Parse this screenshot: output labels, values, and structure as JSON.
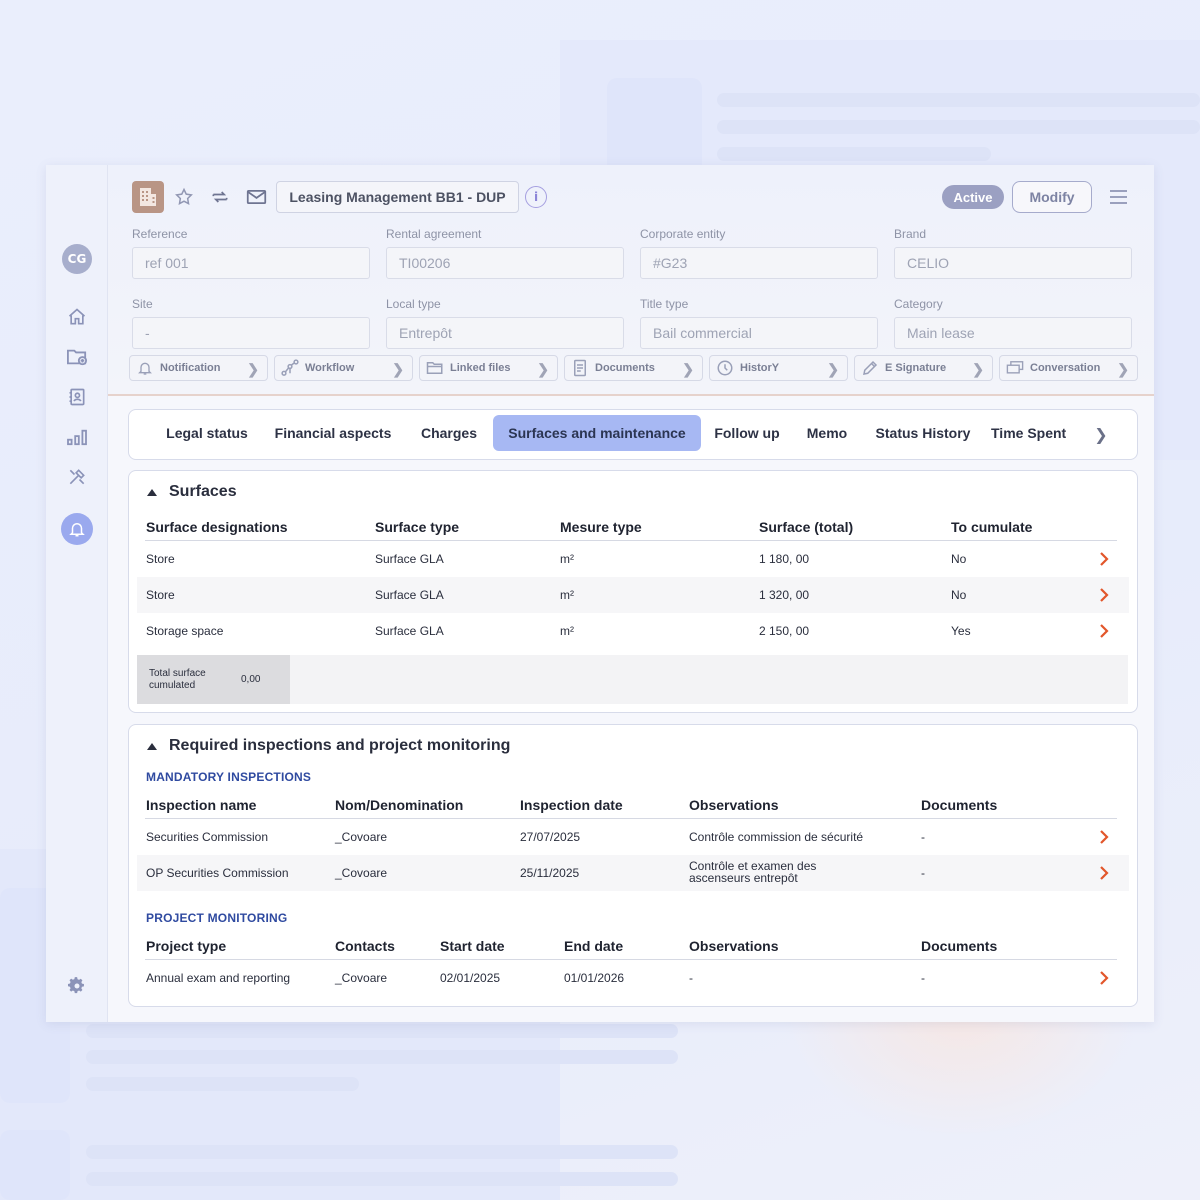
{
  "header": {
    "title": "Leasing Management BB1 - DUP",
    "status": "Active",
    "modify_label": "Modify",
    "user_initials": "CG"
  },
  "fields": [
    {
      "label": "Reference",
      "value": "ref 001"
    },
    {
      "label": "Rental agreement",
      "value": "TI00206"
    },
    {
      "label": "Corporate entity",
      "value": "#G23"
    },
    {
      "label": "Brand",
      "value": "CELIO"
    },
    {
      "label": "Site",
      "value": "-"
    },
    {
      "label": "Local type",
      "value": "Entrepôt"
    },
    {
      "label": "Title type",
      "value": "Bail commercial"
    },
    {
      "label": "Category",
      "value": "Main lease"
    }
  ],
  "actions": [
    {
      "label": "Notification",
      "icon": "bell-icon"
    },
    {
      "label": "Workflow",
      "icon": "workflow-icon"
    },
    {
      "label": "Linked files",
      "icon": "folder-icon"
    },
    {
      "label": "Documents",
      "icon": "document-icon"
    },
    {
      "label": "HistorY",
      "icon": "clock-icon"
    },
    {
      "label": "E Signature",
      "icon": "pen-icon"
    },
    {
      "label": "Conversation",
      "icon": "chat-icon"
    }
  ],
  "tabs": [
    {
      "label": "Legal status"
    },
    {
      "label": "Financial aspects"
    },
    {
      "label": "Charges"
    },
    {
      "label": "Surfaces and maintenance",
      "active": true
    },
    {
      "label": "Follow up"
    },
    {
      "label": "Memo"
    },
    {
      "label": "Status History"
    },
    {
      "label": "Time Spent"
    }
  ],
  "surfaces": {
    "title": "Surfaces",
    "columns": [
      "Surface designations",
      "Surface type",
      "Mesure type",
      "Surface (total)",
      "To cumulate"
    ],
    "rows": [
      [
        "Store",
        "Surface GLA",
        "m²",
        "1 180, 00",
        "No"
      ],
      [
        "Store",
        "Surface GLA",
        "m²",
        "1 320, 00",
        "No"
      ],
      [
        "Storage space",
        "Surface GLA",
        "m²",
        "2 150, 00",
        "Yes"
      ]
    ],
    "total_label_1": "Total surface",
    "total_label_2": "cumulated",
    "total_value": "0,00"
  },
  "inspections": {
    "title": "Required inspections and project monitoring",
    "mandatory_title": "MANDATORY INSPECTIONS",
    "mandatory_columns": [
      "Inspection name",
      "Nom/Denomination",
      "Inspection date",
      "Observations",
      "Documents"
    ],
    "mandatory_rows": [
      [
        "Securities Commission",
        "_Covoare",
        "27/07/2025",
        "Contrôle commission de sécurité",
        "-"
      ],
      [
        "OP Securities Commission",
        "_Covoare",
        "25/11/2025",
        "Contrôle et examen des",
        "-"
      ]
    ],
    "mandatory_row2_obs_line2": "ascenseurs entrepôt",
    "project_title": "PROJECT MONITORING",
    "project_columns": [
      "Project type",
      "Contacts",
      "Start date",
      "End date",
      "Observations",
      "Documents"
    ],
    "project_rows": [
      [
        "Annual exam and reporting",
        "_Covoare",
        "02/01/2025",
        "01/01/2026",
        "-",
        "-"
      ]
    ]
  },
  "colors": {
    "accent": "#a7b8f3",
    "arrow": "#e2562b",
    "section_title": "#2f4aa0"
  }
}
